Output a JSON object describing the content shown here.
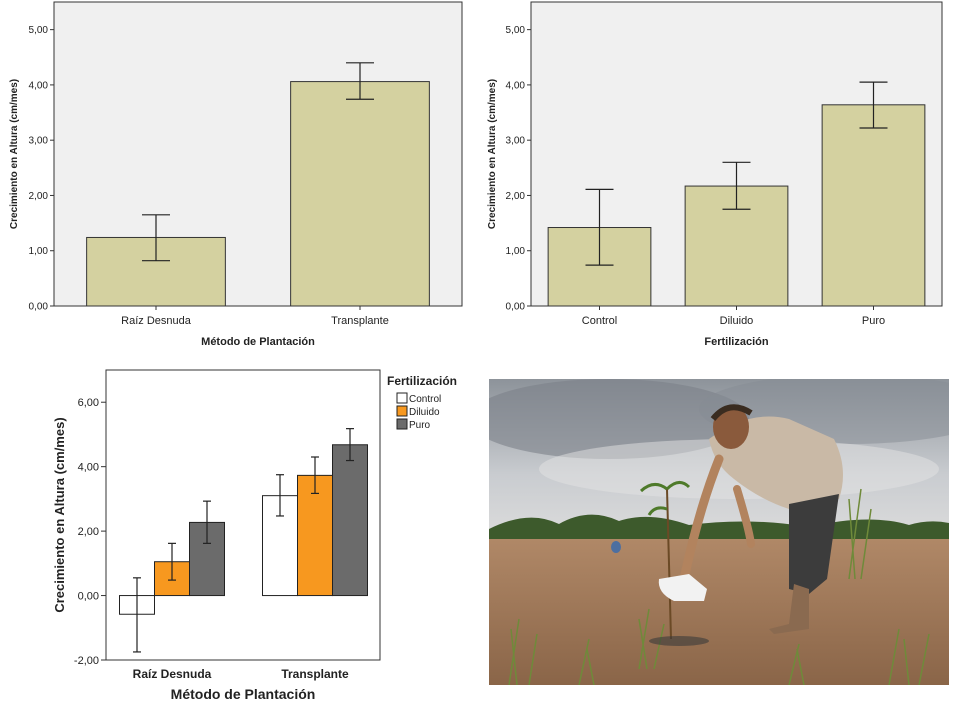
{
  "chart_data": [
    {
      "type": "bar",
      "xlabel": "Método de Plantación",
      "ylabel": "Crecimiento en Altura (cm/mes)",
      "categories": [
        "Raíz Desnuda",
        "Transplante"
      ],
      "values": [
        1.24,
        4.06
      ],
      "error_low": [
        0.82,
        3.74
      ],
      "error_high": [
        1.65,
        4.4
      ],
      "ylim": [
        0,
        5.5
      ],
      "yticks": [
        0,
        1,
        2,
        3,
        4,
        5
      ],
      "ytick_labels": [
        "0,00",
        "1,00",
        "2,00",
        "3,00",
        "4,00",
        "5,00"
      ],
      "bar_color": "#d4d1a0",
      "plot_bg": "#f0f0f0"
    },
    {
      "type": "bar",
      "xlabel": "Fertilización",
      "ylabel": "Crecimiento en Altura (cm/mes)",
      "categories": [
        "Control",
        "Diluido",
        "Puro"
      ],
      "values": [
        1.42,
        2.17,
        3.64
      ],
      "error_low": [
        0.74,
        1.75,
        3.22
      ],
      "error_high": [
        2.11,
        2.6,
        4.05
      ],
      "ylim": [
        0,
        5.5
      ],
      "yticks": [
        0,
        1,
        2,
        3,
        4,
        5
      ],
      "ytick_labels": [
        "0,00",
        "1,00",
        "2,00",
        "3,00",
        "4,00",
        "5,00"
      ],
      "bar_color": "#d4d1a0",
      "plot_bg": "#f0f0f0"
    },
    {
      "type": "bar",
      "xlabel": "Método de Plantación",
      "ylabel": "Crecimiento en Altura (cm/mes)",
      "categories": [
        "Raíz Desnuda",
        "Transplante"
      ],
      "legend_title": "Fertilización",
      "legend_position": "right",
      "series": [
        {
          "name": "Control",
          "color": "#ffffff",
          "values": [
            -0.58,
            3.1
          ],
          "error_low": [
            -1.75,
            2.47
          ],
          "error_high": [
            0.55,
            3.75
          ]
        },
        {
          "name": "Diluido",
          "color": "#f7981f",
          "values": [
            1.05,
            3.73
          ],
          "error_low": [
            0.48,
            3.17
          ],
          "error_high": [
            1.62,
            4.3
          ]
        },
        {
          "name": "Puro",
          "color": "#6b6b6b",
          "values": [
            2.27,
            4.68
          ],
          "error_low": [
            1.62,
            4.19
          ],
          "error_high": [
            2.93,
            5.18
          ]
        }
      ],
      "ylim": [
        -2,
        7
      ],
      "yticks": [
        -2,
        0,
        2,
        4,
        6
      ],
      "ytick_labels": [
        "-2,00",
        "0,00",
        "2,00",
        "4,00",
        "6,00"
      ]
    }
  ],
  "photo": {
    "subject": "man-watering-seedling-icon"
  }
}
